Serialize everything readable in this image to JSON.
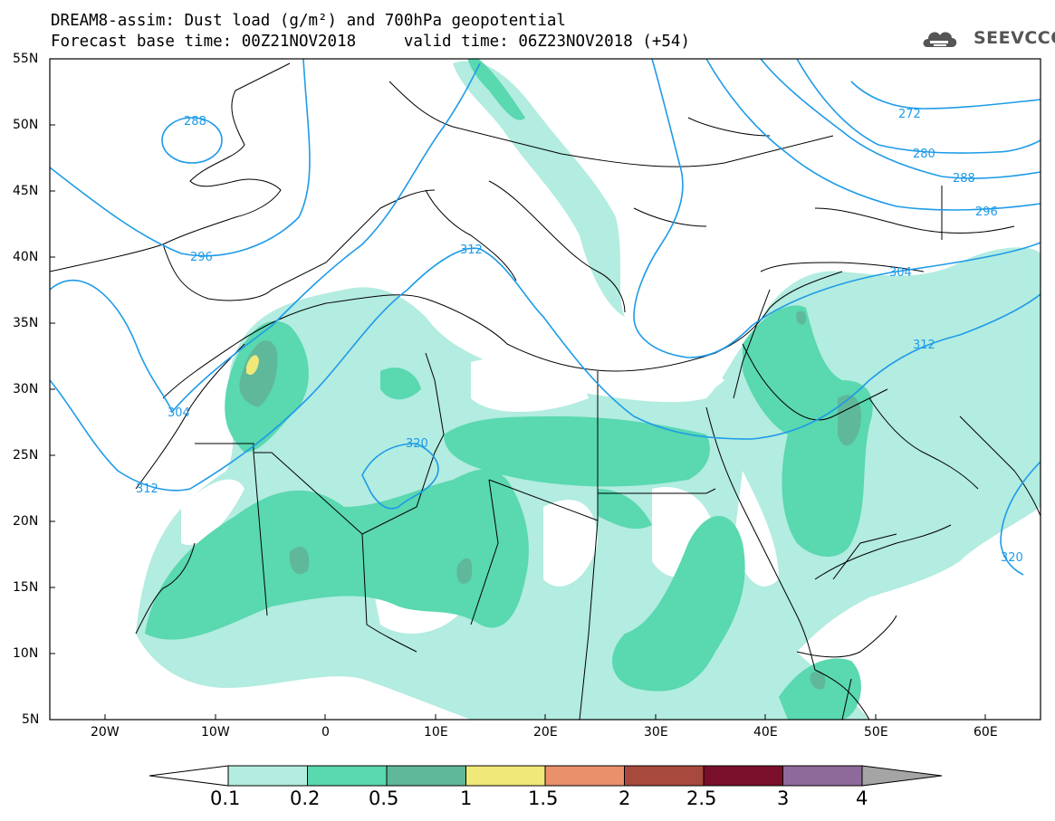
{
  "header": {
    "model": "DREAM8-assim:",
    "product": "Dust load (g/m²) and 700hPa geopotential",
    "base_label": "Forecast base time:",
    "base_time": "00Z21NOV2018",
    "valid_label": "valid time:",
    "valid_time": "06Z23NOV2018",
    "lead": "(+54)"
  },
  "logo": {
    "text": "SEEVCCC",
    "icon": "cloud-logo-icon"
  },
  "map": {
    "lat_labels": [
      "55N",
      "50N",
      "45N",
      "40N",
      "35N",
      "30N",
      "25N",
      "20N",
      "15N",
      "10N",
      "5N"
    ],
    "lon_labels": [
      "20W",
      "10W",
      "0",
      "10E",
      "20E",
      "30E",
      "40E",
      "50E",
      "60E"
    ],
    "contour_labels": [
      "288",
      "296",
      "304",
      "312",
      "320",
      "312",
      "312",
      "304",
      "296",
      "288",
      "280",
      "272",
      "320"
    ]
  },
  "colorbar": {
    "levels": [
      "0.1",
      "0.2",
      "0.5",
      "1",
      "1.5",
      "2",
      "2.5",
      "3",
      "4"
    ],
    "colors": [
      "#ffffff",
      "#b3ece0",
      "#5ad8b0",
      "#5fb89a",
      "#f0e878",
      "#e8916b",
      "#a8493d",
      "#7a0f2c",
      "#8e6a9a",
      "#a5a5a5"
    ]
  },
  "colors": {
    "contour": "#1e9be8",
    "border": "#000000",
    "dust_low": "#b3ece0",
    "dust_mid": "#5ad8b0",
    "dust_high": "#5fb89a",
    "dust_peak": "#f0e878"
  }
}
